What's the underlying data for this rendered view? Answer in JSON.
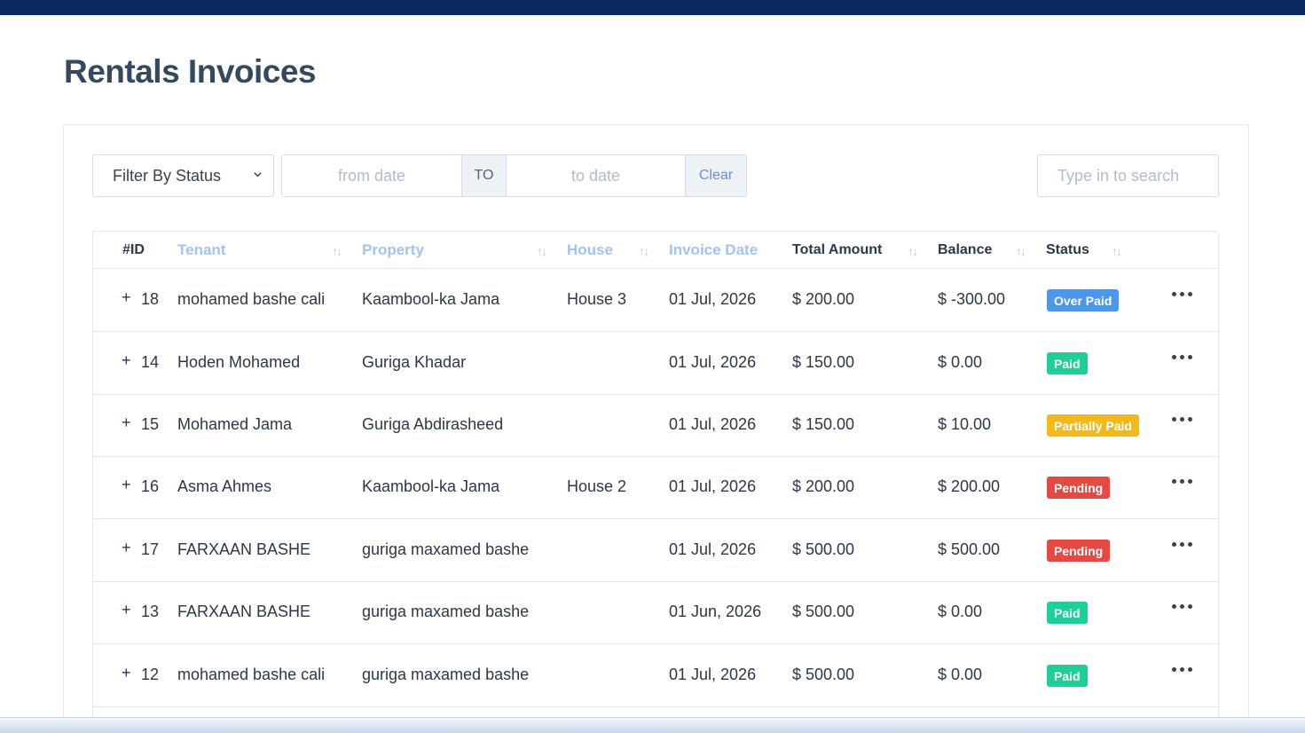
{
  "page": {
    "title": "Rentals Invoices"
  },
  "filters": {
    "status_label": "Filter By Status",
    "from_placeholder": "from date",
    "to_label": "TO",
    "to_placeholder": "to date",
    "clear_label": "Clear",
    "search_placeholder": "Type in to search"
  },
  "table": {
    "headers": {
      "id": "#ID",
      "tenant": "Tenant",
      "property": "Property",
      "house": "House",
      "invoice_date": "Invoice Date",
      "total_amount": "Total Amount",
      "balance": "Balance",
      "status": "Status"
    },
    "rows": [
      {
        "id": "18",
        "tenant": "mohamed bashe cali",
        "property": "Kaambool-ka Jama",
        "house": "House 3",
        "date": "01 Jul, 2026",
        "total": "$ 200.00",
        "balance": "$ -300.00",
        "status": "Over Paid"
      },
      {
        "id": "14",
        "tenant": "Hoden Mohamed",
        "property": "Guriga Khadar",
        "house": "",
        "date": "01 Jul, 2026",
        "total": "$ 150.00",
        "balance": "$ 0.00",
        "status": "Paid"
      },
      {
        "id": "15",
        "tenant": "Mohamed Jama",
        "property": "Guriga Abdirasheed",
        "house": "",
        "date": "01 Jul, 2026",
        "total": "$ 150.00",
        "balance": "$ 10.00",
        "status": "Partially Paid"
      },
      {
        "id": "16",
        "tenant": "Asma Ahmes",
        "property": "Kaambool-ka Jama",
        "house": "House 2",
        "date": "01 Jul, 2026",
        "total": "$ 200.00",
        "balance": "$ 200.00",
        "status": "Pending"
      },
      {
        "id": "17",
        "tenant": "FARXAAN BASHE",
        "property": "guriga maxamed bashe",
        "house": "",
        "date": "01 Jul, 2026",
        "total": "$ 500.00",
        "balance": "$ 500.00",
        "status": "Pending"
      },
      {
        "id": "13",
        "tenant": "FARXAAN BASHE",
        "property": "guriga maxamed bashe",
        "house": "",
        "date": "01 Jun, 2026",
        "total": "$ 500.00",
        "balance": "$ 0.00",
        "status": "Paid"
      },
      {
        "id": "12",
        "tenant": "mohamed bashe cali",
        "property": "guriga maxamed bashe",
        "house": "",
        "date": "01 Jul, 2026",
        "total": "$ 500.00",
        "balance": "$ 0.00",
        "status": "Paid"
      }
    ],
    "expand_symbol": "+"
  },
  "status_colors": {
    "Over Paid": "#4e97e8",
    "Paid": "#1ecf9a",
    "Partially Paid": "#f3b81b",
    "Pending": "#e24a43"
  },
  "colors": {
    "top_bar": "#0b2a63",
    "title": "#34495e",
    "active_header": "#a3c3ef"
  }
}
